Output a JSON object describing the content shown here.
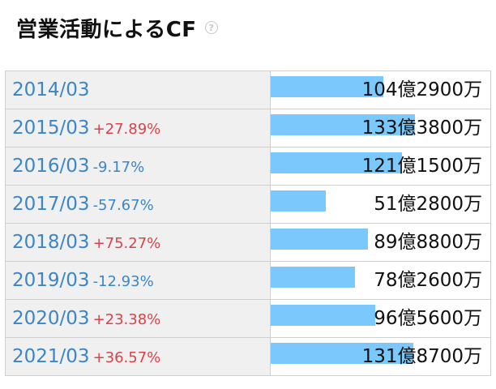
{
  "title": "営業活動によるCF",
  "help_icon": "question-circle-icon",
  "colors": {
    "bar": "#7bc8fc",
    "up": "#d9434a",
    "down": "#3a86c8",
    "year": "#3a86c8"
  },
  "chart_data": {
    "type": "bar",
    "orientation": "horizontal",
    "unit": "万円",
    "rows": [
      {
        "year": "2014/03",
        "change": "",
        "direction": "",
        "value": 1042900,
        "label": "104億2900万"
      },
      {
        "year": "2015/03",
        "change": "+27.89%",
        "direction": "up",
        "value": 1333800,
        "label": "133億3800万"
      },
      {
        "year": "2016/03",
        "change": "-9.17%",
        "direction": "down",
        "value": 1211500,
        "label": "121億1500万"
      },
      {
        "year": "2017/03",
        "change": "-57.67%",
        "direction": "down",
        "value": 512800,
        "label": "51億2800万"
      },
      {
        "year": "2018/03",
        "change": "+75.27%",
        "direction": "up",
        "value": 898800,
        "label": "89億8800万"
      },
      {
        "year": "2019/03",
        "change": "-12.93%",
        "direction": "down",
        "value": 782600,
        "label": "78億2600万"
      },
      {
        "year": "2020/03",
        "change": "+23.38%",
        "direction": "up",
        "value": 965600,
        "label": "96億5600万"
      },
      {
        "year": "2021/03",
        "change": "+36.57%",
        "direction": "up",
        "value": 1318700,
        "label": "131億8700万"
      }
    ]
  }
}
